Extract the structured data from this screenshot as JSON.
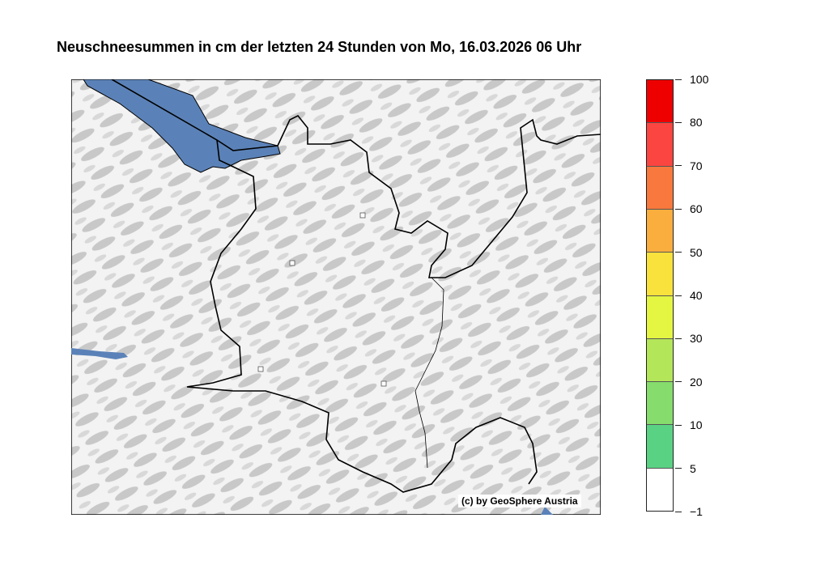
{
  "title": "Neuschneesummen in cm der letzten 24 Stunden von Mo, 16.03.2026 06 Uhr",
  "copyright": "(c) by GeoSphere Austria",
  "colors": {
    "water": "#5b82b8",
    "border": "#000000",
    "terrain_light": "#f4f4f4",
    "terrain_shade": "#bdbdbd"
  },
  "legend": {
    "ticks": [
      "−1",
      "5",
      "10",
      "20",
      "30",
      "40",
      "50",
      "60",
      "70",
      "80",
      "100"
    ],
    "colors": [
      "#ffffff",
      "#5ad283",
      "#86dc6c",
      "#b4e65a",
      "#e4f542",
      "#fae23c",
      "#f9ae3e",
      "#f8783d",
      "#fb4540",
      "#ee0000"
    ]
  },
  "stations": 4
}
